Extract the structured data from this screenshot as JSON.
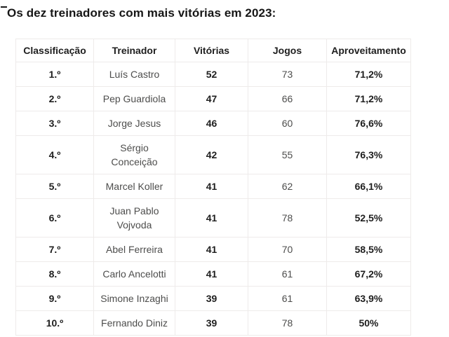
{
  "title": "Os dez treinadores com mais vitórias em 2023:",
  "table": {
    "headers": [
      "Classificação",
      "Treinador",
      "Vitórias",
      "Jogos",
      "Aproveitamento"
    ],
    "rows": [
      {
        "rank": "1.º",
        "coach": "Luís Castro",
        "wins": "52",
        "games": "73",
        "pct": "71,2%"
      },
      {
        "rank": "2.º",
        "coach": "Pep Guardiola",
        "wins": "47",
        "games": "66",
        "pct": "71,2%"
      },
      {
        "rank": "3.º",
        "coach": "Jorge Jesus",
        "wins": "46",
        "games": "60",
        "pct": "76,6%"
      },
      {
        "rank": "4.º",
        "coach": "Sérgio Conceição",
        "wins": "42",
        "games": "55",
        "pct": "76,3%"
      },
      {
        "rank": "5.º",
        "coach": "Marcel Koller",
        "wins": "41",
        "games": "62",
        "pct": "66,1%"
      },
      {
        "rank": "6.º",
        "coach": "Juan Pablo Vojvoda",
        "wins": "41",
        "games": "78",
        "pct": "52,5%"
      },
      {
        "rank": "7.º",
        "coach": "Abel Ferreira",
        "wins": "41",
        "games": "70",
        "pct": "58,5%"
      },
      {
        "rank": "8.º",
        "coach": "Carlo Ancelotti",
        "wins": "41",
        "games": "61",
        "pct": "67,2%"
      },
      {
        "rank": "9.º",
        "coach": "Simone Inzaghi",
        "wins": "39",
        "games": "61",
        "pct": "63,9%"
      },
      {
        "rank": "10.º",
        "coach": "Fernando Diniz",
        "wins": "39",
        "games": "78",
        "pct": "50%"
      }
    ]
  },
  "colors": {
    "text_bold": "#1e1e1e",
    "text_regular": "#4d4d4c",
    "border": "#eeebea",
    "background": "#ffffff"
  }
}
